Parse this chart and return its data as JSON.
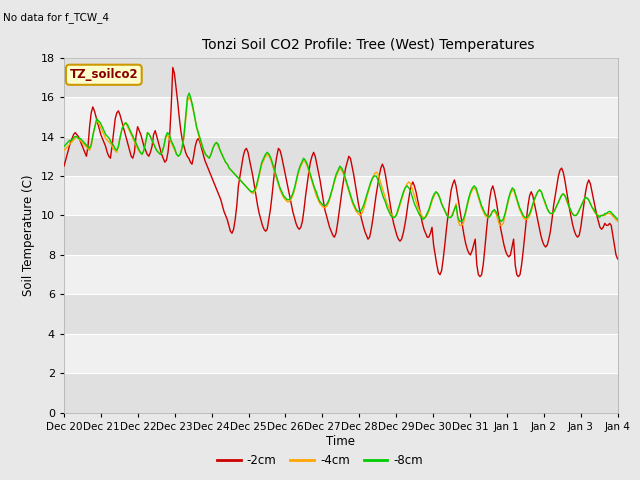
{
  "title": "Tonzi Soil CO2 Profile: Tree (West) Temperatures",
  "no_data_text": "No data for f_TCW_4",
  "legend_box_label": "TZ_soilco2",
  "ylabel": "Soil Temperature (C)",
  "xlabel": "Time",
  "ylim": [
    0,
    18
  ],
  "yticks": [
    0,
    2,
    4,
    6,
    8,
    10,
    12,
    14,
    16,
    18
  ],
  "bg_color": "#e8e8e8",
  "plot_bg_color": "#f0f0f0",
  "line_colors": {
    "2cm": "#cc0000",
    "4cm": "#ffa500",
    "8cm": "#00cc00"
  },
  "legend_labels": [
    "-2cm",
    "-4cm",
    "-8cm"
  ],
  "start_date": "2000-12-20",
  "red_data": [
    12.5,
    12.8,
    13.1,
    13.4,
    13.7,
    13.9,
    14.1,
    14.2,
    14.1,
    14.0,
    13.8,
    13.6,
    13.4,
    13.2,
    13.0,
    13.5,
    14.5,
    15.2,
    15.5,
    15.3,
    15.0,
    14.7,
    14.4,
    14.1,
    13.9,
    13.7,
    13.5,
    13.2,
    13.0,
    12.9,
    13.5,
    14.2,
    14.9,
    15.2,
    15.3,
    15.1,
    14.8,
    14.5,
    14.2,
    13.9,
    13.6,
    13.3,
    13.0,
    12.9,
    13.2,
    14.0,
    14.5,
    14.3,
    14.1,
    13.8,
    13.5,
    13.3,
    13.1,
    13.0,
    13.2,
    13.5,
    14.1,
    14.3,
    14.0,
    13.7,
    13.4,
    13.1,
    12.9,
    12.7,
    12.8,
    13.2,
    14.0,
    15.5,
    17.5,
    17.2,
    16.5,
    15.8,
    15.0,
    14.3,
    13.8,
    13.5,
    13.2,
    13.0,
    12.9,
    12.7,
    12.6,
    13.0,
    13.5,
    13.8,
    13.9,
    13.7,
    13.4,
    13.1,
    12.8,
    12.6,
    12.4,
    12.2,
    12.0,
    11.8,
    11.6,
    11.4,
    11.2,
    11.0,
    10.8,
    10.5,
    10.2,
    10.0,
    9.8,
    9.5,
    9.2,
    9.1,
    9.3,
    9.8,
    10.5,
    11.5,
    12.0,
    12.5,
    13.0,
    13.3,
    13.4,
    13.2,
    12.8,
    12.4,
    12.0,
    11.5,
    11.0,
    10.5,
    10.1,
    9.8,
    9.5,
    9.3,
    9.2,
    9.3,
    9.8,
    10.3,
    11.0,
    11.8,
    12.5,
    13.0,
    13.4,
    13.3,
    13.0,
    12.6,
    12.2,
    11.8,
    11.4,
    11.0,
    10.6,
    10.2,
    9.9,
    9.6,
    9.4,
    9.3,
    9.4,
    9.7,
    10.3,
    11.0,
    11.6,
    12.2,
    12.7,
    13.0,
    13.2,
    13.0,
    12.6,
    12.2,
    11.8,
    11.3,
    10.8,
    10.3,
    10.0,
    9.7,
    9.4,
    9.2,
    9.0,
    8.9,
    9.1,
    9.6,
    10.2,
    10.8,
    11.4,
    11.9,
    12.4,
    12.7,
    13.0,
    12.9,
    12.5,
    12.1,
    11.6,
    11.1,
    10.6,
    10.2,
    9.8,
    9.5,
    9.2,
    9.0,
    8.8,
    8.9,
    9.3,
    9.8,
    10.4,
    11.0,
    11.5,
    12.0,
    12.4,
    12.6,
    12.4,
    12.0,
    11.5,
    11.0,
    10.5,
    10.0,
    9.6,
    9.3,
    9.0,
    8.8,
    8.7,
    8.8,
    9.1,
    9.5,
    10.0,
    10.6,
    11.1,
    11.5,
    11.7,
    11.5,
    11.2,
    10.8,
    10.4,
    10.0,
    9.6,
    9.3,
    9.1,
    8.9,
    8.9,
    9.1,
    9.4,
    8.5,
    8.0,
    7.5,
    7.1,
    7.0,
    7.2,
    7.8,
    8.5,
    9.3,
    10.0,
    10.7,
    11.3,
    11.6,
    11.8,
    11.5,
    11.0,
    10.5,
    10.0,
    9.5,
    9.0,
    8.6,
    8.3,
    8.1,
    8.0,
    8.2,
    8.5,
    8.8,
    7.5,
    7.0,
    6.9,
    7.0,
    7.5,
    8.3,
    9.2,
    10.0,
    10.8,
    11.3,
    11.5,
    11.2,
    10.8,
    10.3,
    9.8,
    9.3,
    8.9,
    8.5,
    8.2,
    8.0,
    7.9,
    8.0,
    8.4,
    8.8,
    7.5,
    7.0,
    6.9,
    7.0,
    7.5,
    8.2,
    9.0,
    9.8,
    10.5,
    11.0,
    11.2,
    11.0,
    10.6,
    10.2,
    9.8,
    9.4,
    9.0,
    8.7,
    8.5,
    8.4,
    8.5,
    8.8,
    9.2,
    9.8,
    10.5,
    11.0,
    11.5,
    12.0,
    12.3,
    12.4,
    12.2,
    11.8,
    11.3,
    10.8,
    10.3,
    9.9,
    9.5,
    9.2,
    9.0,
    8.9,
    9.0,
    9.4,
    10.0,
    10.6,
    11.2,
    11.6,
    11.8,
    11.6,
    11.2,
    10.8,
    10.4,
    10.0,
    9.7,
    9.4,
    9.3,
    9.4,
    9.6,
    9.5,
    9.5,
    9.6,
    9.5,
    9.0,
    8.5,
    8.0,
    7.8
  ],
  "orange_data": [
    13.3,
    13.4,
    13.5,
    13.6,
    13.7,
    13.8,
    13.9,
    14.0,
    13.9,
    13.8,
    13.7,
    13.6,
    13.5,
    13.4,
    13.3,
    13.5,
    14.1,
    14.5,
    14.8,
    14.7,
    14.5,
    14.3,
    14.1,
    13.9,
    13.8,
    13.7,
    13.6,
    13.4,
    13.3,
    13.2,
    13.5,
    14.0,
    14.4,
    14.6,
    14.7,
    14.5,
    14.3,
    14.1,
    13.9,
    13.7,
    13.5,
    13.3,
    13.2,
    13.1,
    13.3,
    13.8,
    14.2,
    14.1,
    13.9,
    13.7,
    13.5,
    13.3,
    13.2,
    13.1,
    13.2,
    13.5,
    13.9,
    14.1,
    13.9,
    13.7,
    13.5,
    13.3,
    13.1,
    13.0,
    13.1,
    13.4,
    13.9,
    14.8,
    15.8,
    16.0,
    15.8,
    15.4,
    15.0,
    14.5,
    14.1,
    13.8,
    13.5,
    13.3,
    13.1,
    13.0,
    12.9,
    13.1,
    13.4,
    13.6,
    13.7,
    13.5,
    13.3,
    13.1,
    12.9,
    12.7,
    12.6,
    12.4,
    12.3,
    12.2,
    12.1,
    12.0,
    11.9,
    11.8,
    11.7,
    11.6,
    11.5,
    11.4,
    11.3,
    11.2,
    11.1,
    11.2,
    11.4,
    11.8,
    12.2,
    12.6,
    12.8,
    13.0,
    13.1,
    13.0,
    12.8,
    12.5,
    12.2,
    11.9,
    11.6,
    11.3,
    11.1,
    10.9,
    10.8,
    10.7,
    10.7,
    10.8,
    11.0,
    11.3,
    11.7,
    12.1,
    12.4,
    12.6,
    12.8,
    12.7,
    12.5,
    12.2,
    11.9,
    11.6,
    11.3,
    11.0,
    10.8,
    10.6,
    10.5,
    10.4,
    10.4,
    10.5,
    10.7,
    11.0,
    11.4,
    11.7,
    12.0,
    12.2,
    12.4,
    12.3,
    12.1,
    11.8,
    11.5,
    11.2,
    10.9,
    10.6,
    10.4,
    10.2,
    10.1,
    10.0,
    10.1,
    10.3,
    10.6,
    11.0,
    11.3,
    11.6,
    11.9,
    12.1,
    12.2,
    12.1,
    11.8,
    11.5,
    11.2,
    10.9,
    10.6,
    10.4,
    10.1,
    10.0,
    9.9,
    10.0,
    10.2,
    10.5,
    10.8,
    11.1,
    11.4,
    11.6,
    11.7,
    11.6,
    11.3,
    11.0,
    10.7,
    10.4,
    10.2,
    10.0,
    9.9,
    9.9,
    10.0,
    10.2,
    10.5,
    10.8,
    11.0,
    11.2,
    11.1,
    10.9,
    10.6,
    10.4,
    10.2,
    10.0,
    9.9,
    9.9,
    10.1,
    10.3,
    10.6,
    9.8,
    9.5,
    9.5,
    9.6,
    10.0,
    10.4,
    10.8,
    11.1,
    11.3,
    11.4,
    11.3,
    11.0,
    10.7,
    10.4,
    10.2,
    10.0,
    9.9,
    9.9,
    10.0,
    10.2,
    10.2,
    10.1,
    9.8,
    9.5,
    9.5,
    9.6,
    10.0,
    10.4,
    10.8,
    11.1,
    11.3,
    11.2,
    10.9,
    10.6,
    10.3,
    10.1,
    9.9,
    9.8,
    9.8,
    9.9,
    10.1,
    10.4,
    10.7,
    11.0,
    11.2,
    11.3,
    11.2,
    10.9,
    10.6,
    10.4,
    10.2,
    10.1,
    10.1,
    10.2,
    10.4,
    10.6,
    10.8,
    11.0,
    11.1,
    11.0,
    10.7,
    10.5,
    10.3,
    10.1,
    10.0,
    10.0,
    10.1,
    10.3,
    10.5,
    10.7,
    10.9,
    10.9,
    10.8,
    10.6,
    10.4,
    10.2,
    10.1,
    10.0,
    10.0,
    10.0,
    10.0,
    10.0,
    10.1,
    10.1,
    10.1,
    10.0,
    9.9,
    9.8,
    9.7
  ],
  "green_data": [
    13.5,
    13.6,
    13.7,
    13.8,
    13.8,
    13.9,
    14.0,
    14.0,
    13.9,
    13.9,
    13.8,
    13.7,
    13.6,
    13.5,
    13.4,
    13.6,
    14.1,
    14.5,
    14.9,
    14.8,
    14.7,
    14.5,
    14.3,
    14.1,
    14.0,
    13.9,
    13.7,
    13.6,
    13.4,
    13.3,
    13.5,
    14.0,
    14.4,
    14.6,
    14.7,
    14.6,
    14.4,
    14.2,
    14.0,
    13.8,
    13.6,
    13.4,
    13.2,
    13.1,
    13.3,
    13.7,
    14.2,
    14.1,
    13.9,
    13.7,
    13.5,
    13.3,
    13.2,
    13.1,
    13.2,
    13.5,
    14.0,
    14.2,
    14.1,
    13.8,
    13.6,
    13.4,
    13.1,
    13.0,
    13.1,
    13.4,
    14.0,
    15.0,
    16.0,
    16.2,
    15.9,
    15.5,
    15.0,
    14.5,
    14.2,
    13.9,
    13.6,
    13.3,
    13.1,
    13.0,
    12.9,
    13.1,
    13.4,
    13.6,
    13.7,
    13.6,
    13.3,
    13.1,
    12.9,
    12.7,
    12.6,
    12.4,
    12.3,
    12.2,
    12.1,
    12.0,
    11.9,
    11.8,
    11.7,
    11.6,
    11.5,
    11.4,
    11.3,
    11.2,
    11.2,
    11.3,
    11.5,
    11.9,
    12.3,
    12.7,
    12.9,
    13.1,
    13.2,
    13.1,
    12.9,
    12.6,
    12.3,
    12.0,
    11.7,
    11.4,
    11.2,
    11.0,
    10.9,
    10.8,
    10.8,
    10.9,
    11.1,
    11.4,
    11.8,
    12.2,
    12.5,
    12.7,
    12.9,
    12.8,
    12.6,
    12.3,
    12.0,
    11.7,
    11.4,
    11.2,
    10.9,
    10.7,
    10.6,
    10.5,
    10.5,
    10.6,
    10.8,
    11.1,
    11.4,
    11.8,
    12.1,
    12.3,
    12.5,
    12.4,
    12.2,
    11.9,
    11.6,
    11.3,
    11.0,
    10.7,
    10.5,
    10.3,
    10.2,
    10.2,
    10.3,
    10.5,
    10.8,
    11.1,
    11.4,
    11.7,
    11.9,
    12.0,
    12.0,
    11.8,
    11.5,
    11.2,
    10.9,
    10.7,
    10.4,
    10.2,
    10.0,
    9.9,
    9.9,
    10.0,
    10.3,
    10.6,
    10.9,
    11.2,
    11.4,
    11.5,
    11.4,
    11.2,
    10.9,
    10.6,
    10.4,
    10.2,
    10.0,
    9.9,
    9.8,
    9.9,
    10.1,
    10.3,
    10.6,
    10.9,
    11.1,
    11.2,
    11.1,
    10.9,
    10.6,
    10.4,
    10.2,
    10.0,
    9.9,
    9.9,
    10.0,
    10.3,
    10.5,
    9.9,
    9.7,
    9.7,
    9.8,
    10.1,
    10.5,
    10.9,
    11.2,
    11.4,
    11.5,
    11.4,
    11.1,
    10.8,
    10.5,
    10.3,
    10.1,
    10.0,
    9.9,
    10.0,
    10.2,
    10.3,
    10.2,
    10.0,
    9.8,
    9.7,
    9.8,
    10.1,
    10.5,
    10.9,
    11.2,
    11.4,
    11.3,
    11.0,
    10.7,
    10.4,
    10.2,
    10.0,
    9.9,
    9.9,
    10.0,
    10.2,
    10.5,
    10.8,
    11.0,
    11.2,
    11.3,
    11.2,
    10.9,
    10.7,
    10.4,
    10.2,
    10.1,
    10.1,
    10.2,
    10.4,
    10.6,
    10.8,
    11.0,
    11.1,
    11.0,
    10.8,
    10.5,
    10.3,
    10.1,
    10.0,
    10.0,
    10.1,
    10.3,
    10.5,
    10.7,
    10.9,
    10.9,
    10.8,
    10.6,
    10.4,
    10.3,
    10.1,
    10.0,
    9.9,
    10.0,
    10.0,
    10.1,
    10.1,
    10.2,
    10.2,
    10.1,
    10.0,
    9.9,
    9.8
  ]
}
